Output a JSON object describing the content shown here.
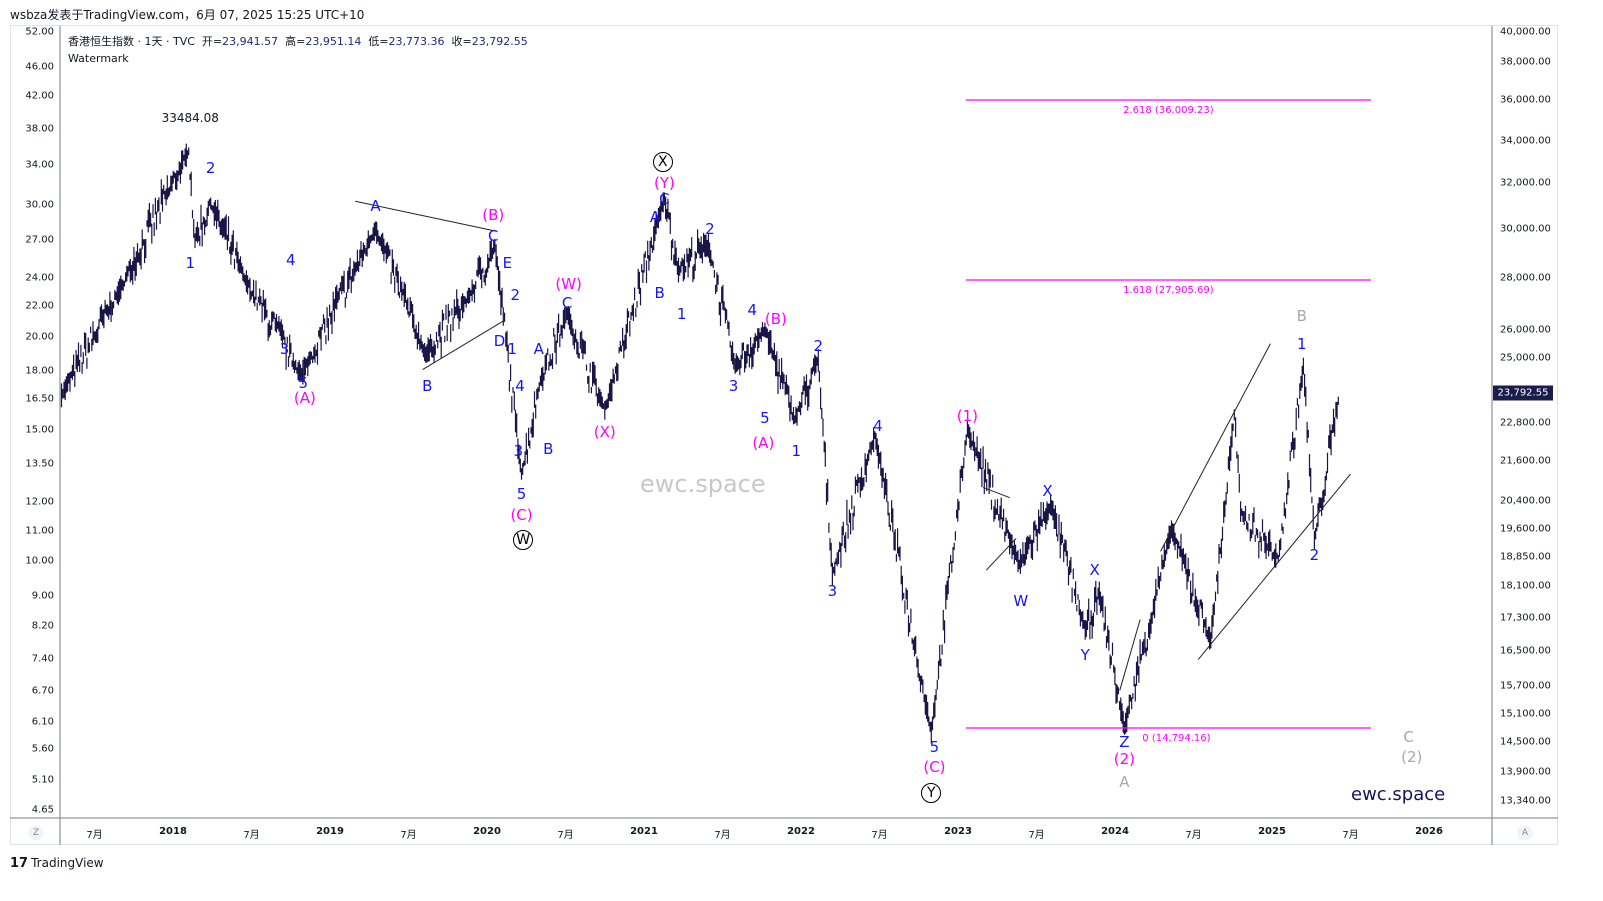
{
  "header": {
    "published": "wsbza发表于TradingView.com，6月 07, 2025 15:25 UTC+10",
    "symbol": "香港恒生指数 · 1天 · TVC",
    "open_label": "开=",
    "open": "23,941.57",
    "high_label": "高=",
    "high": "23,951.14",
    "low_label": "低=",
    "low": "23,773.36",
    "close_label": "收=",
    "close": "23,792.55",
    "watermark_label": "Watermark"
  },
  "footer": {
    "logo_text": "TradingView",
    "logo_mark": "17",
    "zoom_btn": "Z",
    "auto_btn": "A"
  },
  "watermark": "ewc.space",
  "brand": "ewc.space",
  "colors": {
    "wave_blue": "#1414ff",
    "wave_magenta": "#ff00ff",
    "wave_gray": "#a8a8a8",
    "price": "#1b1446",
    "fib": "#ff00ff",
    "badge": "#1b1b4d"
  },
  "chart_data": {
    "type": "line",
    "title": "香港恒生指数 · 1天 · TVC",
    "y_scale": "log",
    "ylim": [
      13100,
      40000
    ],
    "xlim": [
      2016.9,
      2026.4
    ],
    "right_ticks": [
      "38,000.00",
      "36,000.00",
      "34,000.00",
      "32,000.00",
      "30,000.00",
      "28,000.00",
      "26,000.00",
      "25,000.00",
      "22,800.00",
      "21,600.00",
      "20,400.00",
      "19,600.00",
      "18,850.00",
      "18,100.00",
      "17,300.00",
      "16,500.00",
      "15,700.00",
      "15,100.00",
      "14,500.00",
      "13,900.00",
      "13,340.00"
    ],
    "left_ticks": [
      "52.00",
      "46.00",
      "42.00",
      "38.00",
      "34.00",
      "30.00",
      "27.00",
      "24.00",
      "22.00",
      "20.00",
      "18.00",
      "16.50",
      "15.00",
      "13.50",
      "12.00",
      "11.00",
      "10.00",
      "9.00",
      "8.20",
      "7.40",
      "6.70",
      "6.10",
      "5.60",
      "5.10",
      "4.65"
    ],
    "x_ticks": [
      {
        "label": "7月",
        "year": 2017.5
      },
      {
        "label": "2018",
        "year": 2018,
        "major": true
      },
      {
        "label": "7月",
        "year": 2018.5
      },
      {
        "label": "2019",
        "year": 2019,
        "major": true
      },
      {
        "label": "7月",
        "year": 2019.5
      },
      {
        "label": "2020",
        "year": 2020,
        "major": true
      },
      {
        "label": "7月",
        "year": 2020.5
      },
      {
        "label": "2021",
        "year": 2021,
        "major": true
      },
      {
        "label": "7月",
        "year": 2021.5
      },
      {
        "label": "2022",
        "year": 2022,
        "major": true
      },
      {
        "label": "7月",
        "year": 2022.5
      },
      {
        "label": "2023",
        "year": 2023,
        "major": true
      },
      {
        "label": "7月",
        "year": 2023.5
      },
      {
        "label": "2024",
        "year": 2024,
        "major": true
      },
      {
        "label": "7月",
        "year": 2024.5
      },
      {
        "label": "2025",
        "year": 2025,
        "major": true
      },
      {
        "label": "7月",
        "year": 2025.5
      },
      {
        "label": "2026",
        "year": 2026,
        "major": true
      }
    ],
    "last_price": 23792.55,
    "last_price_label": "23,792.55",
    "pivots": [
      [
        2017.29,
        23700
      ],
      [
        2017.66,
        27500
      ],
      [
        2018.1,
        33484
      ],
      [
        2018.14,
        29500
      ],
      [
        2018.24,
        31100
      ],
      [
        2018.46,
        27900
      ],
      [
        2018.82,
        24400
      ],
      [
        2019.29,
        30000
      ],
      [
        2019.61,
        25100
      ],
      [
        2019.89,
        27300
      ],
      [
        2020.05,
        29300
      ],
      [
        2020.22,
        21200
      ],
      [
        2020.34,
        24200
      ],
      [
        2020.51,
        26600
      ],
      [
        2020.75,
        23200
      ],
      [
        2021.13,
        31300
      ],
      [
        2021.22,
        28300
      ],
      [
        2021.41,
        29300
      ],
      [
        2021.58,
        24700
      ],
      [
        2021.77,
        26000
      ],
      [
        2021.96,
        22900
      ],
      [
        2022.11,
        24900
      ],
      [
        2022.2,
        18400
      ],
      [
        2022.47,
        22400
      ],
      [
        2022.83,
        14700
      ],
      [
        2023.06,
        22600
      ],
      [
        2023.39,
        18650
      ],
      [
        2023.59,
        20300
      ],
      [
        2023.81,
        17000
      ],
      [
        2023.9,
        17900
      ],
      [
        2024.06,
        14794
      ],
      [
        2024.36,
        19600
      ],
      [
        2024.61,
        16750
      ],
      [
        2024.76,
        23050
      ],
      [
        2024.8,
        20100
      ],
      [
        2025.04,
        18800
      ],
      [
        2025.2,
        24700
      ],
      [
        2025.27,
        19300
      ],
      [
        2025.43,
        23792
      ]
    ],
    "fib_levels": [
      {
        "label": "2.618 (36,009.23)",
        "price": 36009.23,
        "from": 2023.05,
        "to": 2025.63
      },
      {
        "label": "1.618 (27,905.69)",
        "price": 27905.69,
        "from": 2023.05,
        "to": 2025.63
      },
      {
        "label": "0 (14,794.16)",
        "price": 14794.16,
        "from": 2023.05,
        "to": 2025.63
      }
    ],
    "trendlines": [
      [
        [
          2019.16,
          31200
        ],
        [
          2020.06,
          29900
        ]
      ],
      [
        [
          2019.59,
          24580
        ],
        [
          2020.11,
          26350
        ]
      ],
      [
        [
          2023.16,
          20800
        ],
        [
          2023.33,
          20500
        ]
      ],
      [
        [
          2023.18,
          18500
        ],
        [
          2023.37,
          19350
        ]
      ],
      [
        [
          2024.03,
          15600
        ],
        [
          2024.16,
          17250
        ]
      ],
      [
        [
          2024.29,
          19000
        ],
        [
          2024.99,
          25500
        ]
      ],
      [
        [
          2024.53,
          16300
        ],
        [
          2025.5,
          21200
        ]
      ]
    ],
    "annotations": [
      {
        "t": "33484.08",
        "c": "black",
        "x": 2018.11,
        "p": 35100,
        "s": 12
      },
      {
        "t": "2",
        "c": "blue",
        "x": 2018.24,
        "p": 32700
      },
      {
        "t": "1",
        "c": "blue",
        "x": 2018.11,
        "p": 28600
      },
      {
        "t": "4",
        "c": "blue",
        "x": 2018.75,
        "p": 28700
      },
      {
        "t": "3",
        "c": "blue",
        "x": 2018.71,
        "p": 25300
      },
      {
        "t": "5",
        "c": "blue",
        "x": 2018.83,
        "p": 24100
      },
      {
        "t": "(A)",
        "c": "magenta",
        "x": 2018.84,
        "p": 23600
      },
      {
        "t": "A",
        "c": "blue",
        "x": 2019.29,
        "p": 31000
      },
      {
        "t": "B",
        "c": "blue",
        "x": 2019.62,
        "p": 24000
      },
      {
        "t": "(B)",
        "c": "magenta",
        "x": 2020.04,
        "p": 30600
      },
      {
        "t": "C",
        "c": "blue",
        "x": 2020.04,
        "p": 29700
      },
      {
        "t": "E",
        "c": "blue",
        "x": 2020.13,
        "p": 28600
      },
      {
        "t": "2",
        "c": "blue",
        "x": 2020.18,
        "p": 27300
      },
      {
        "t": "D",
        "c": "blue",
        "x": 2020.08,
        "p": 25600
      },
      {
        "t": "1",
        "c": "blue",
        "x": 2020.16,
        "p": 25300
      },
      {
        "t": "4",
        "c": "blue",
        "x": 2020.21,
        "p": 24000
      },
      {
        "t": "3",
        "c": "blue",
        "x": 2020.2,
        "p": 21900
      },
      {
        "t": "5",
        "c": "blue",
        "x": 2020.22,
        "p": 20600
      },
      {
        "t": "(C)",
        "c": "magenta",
        "x": 2020.22,
        "p": 20000
      },
      {
        "t": "W",
        "c": "circle",
        "x": 2020.23,
        "p": 19300
      },
      {
        "t": "A",
        "c": "blue",
        "x": 2020.33,
        "p": 25300
      },
      {
        "t": "B",
        "c": "blue",
        "x": 2020.39,
        "p": 21950
      },
      {
        "t": "C",
        "c": "blue",
        "x": 2020.51,
        "p": 27000
      },
      {
        "t": "(W)",
        "c": "magenta",
        "x": 2020.52,
        "p": 27750
      },
      {
        "t": "(X)",
        "c": "magenta",
        "x": 2020.75,
        "p": 22500
      },
      {
        "t": "X",
        "c": "circle",
        "x": 2021.12,
        "p": 33000
      },
      {
        "t": "(Y)",
        "c": "magenta",
        "x": 2021.13,
        "p": 32000
      },
      {
        "t": "C",
        "c": "blue",
        "x": 2021.13,
        "p": 31300
      },
      {
        "t": "A",
        "c": "blue",
        "x": 2021.07,
        "p": 30500
      },
      {
        "t": "B",
        "c": "blue",
        "x": 2021.1,
        "p": 27400
      },
      {
        "t": "1",
        "c": "blue",
        "x": 2021.24,
        "p": 26600
      },
      {
        "t": "2",
        "c": "blue",
        "x": 2021.42,
        "p": 30000
      },
      {
        "t": "4",
        "c": "blue",
        "x": 2021.69,
        "p": 26750
      },
      {
        "t": "(B)",
        "c": "magenta",
        "x": 2021.84,
        "p": 26400
      },
      {
        "t": "3",
        "c": "blue",
        "x": 2021.57,
        "p": 24000
      },
      {
        "t": "5",
        "c": "blue",
        "x": 2021.77,
        "p": 22950
      },
      {
        "t": "(A)",
        "c": "magenta",
        "x": 2021.76,
        "p": 22150
      },
      {
        "t": "1",
        "c": "blue",
        "x": 2021.97,
        "p": 21900
      },
      {
        "t": "2",
        "c": "blue",
        "x": 2022.11,
        "p": 25400
      },
      {
        "t": "4",
        "c": "blue",
        "x": 2022.49,
        "p": 22700
      },
      {
        "t": "3",
        "c": "blue",
        "x": 2022.2,
        "p": 17950
      },
      {
        "t": "5",
        "c": "blue",
        "x": 2022.85,
        "p": 14400
      },
      {
        "t": "(C)",
        "c": "magenta",
        "x": 2022.85,
        "p": 14000
      },
      {
        "t": "Y",
        "c": "circle",
        "x": 2022.83,
        "p": 13500
      },
      {
        "t": "(1)",
        "c": "magenta",
        "x": 2023.06,
        "p": 23000
      },
      {
        "t": "W",
        "c": "blue",
        "x": 2023.4,
        "p": 17700
      },
      {
        "t": "X",
        "c": "blue",
        "x": 2023.57,
        "p": 20700
      },
      {
        "t": "X",
        "c": "blue",
        "x": 2023.87,
        "p": 18500
      },
      {
        "t": "Y",
        "c": "blue",
        "x": 2023.81,
        "p": 16400
      },
      {
        "t": "Z",
        "c": "blue",
        "x": 2024.06,
        "p": 14500
      },
      {
        "t": "(2)",
        "c": "magenta",
        "x": 2024.06,
        "p": 14150
      },
      {
        "t": "A",
        "c": "gray",
        "x": 2024.06,
        "p": 13700
      },
      {
        "t": "B",
        "c": "gray",
        "x": 2025.19,
        "p": 26500
      },
      {
        "t": "1",
        "c": "blue",
        "x": 2025.19,
        "p": 25500
      },
      {
        "t": "2",
        "c": "blue",
        "x": 2025.27,
        "p": 18900
      },
      {
        "t": "C",
        "c": "gray",
        "x": 2025.87,
        "p": 14600
      },
      {
        "t": "(2)",
        "c": "gray",
        "x": 2025.89,
        "p": 14200
      }
    ]
  }
}
